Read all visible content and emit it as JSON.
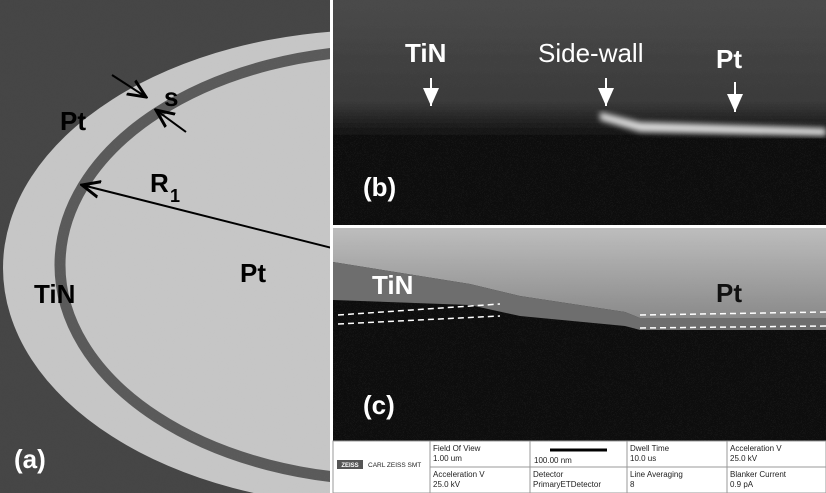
{
  "panel_a": {
    "pt_upper": "Pt",
    "gap_label": "s",
    "radius_label": "R",
    "radius_subscript": "1",
    "tin": "TiN",
    "pt_center": "Pt",
    "panel_label": "(a)"
  },
  "panel_b": {
    "tin": "TiN",
    "side_wall": "Side-wall",
    "pt": "Pt",
    "panel_label": "(b)"
  },
  "panel_c": {
    "tin": "TiN",
    "pt": "Pt",
    "panel_label": "(c)"
  },
  "info_bar": {
    "logo": "ZEISS",
    "company": "CARL ZEISS SMT",
    "scale_bar": "100.00 nm",
    "cells": [
      {
        "label": "Field Of View",
        "value": "1.00 um"
      },
      {
        "label": "Dwell Time",
        "value": "10.0 us"
      },
      {
        "label": "Acceleration V",
        "value": "25.0 kV"
      },
      {
        "label": "Acceleration V",
        "value": "25.0 kV"
      },
      {
        "label": "Detector",
        "value": "PrimaryETDetector"
      },
      {
        "label": "Line Averaging",
        "value": "8"
      },
      {
        "label": "Blanker Current",
        "value": "0.9 pA"
      }
    ]
  }
}
